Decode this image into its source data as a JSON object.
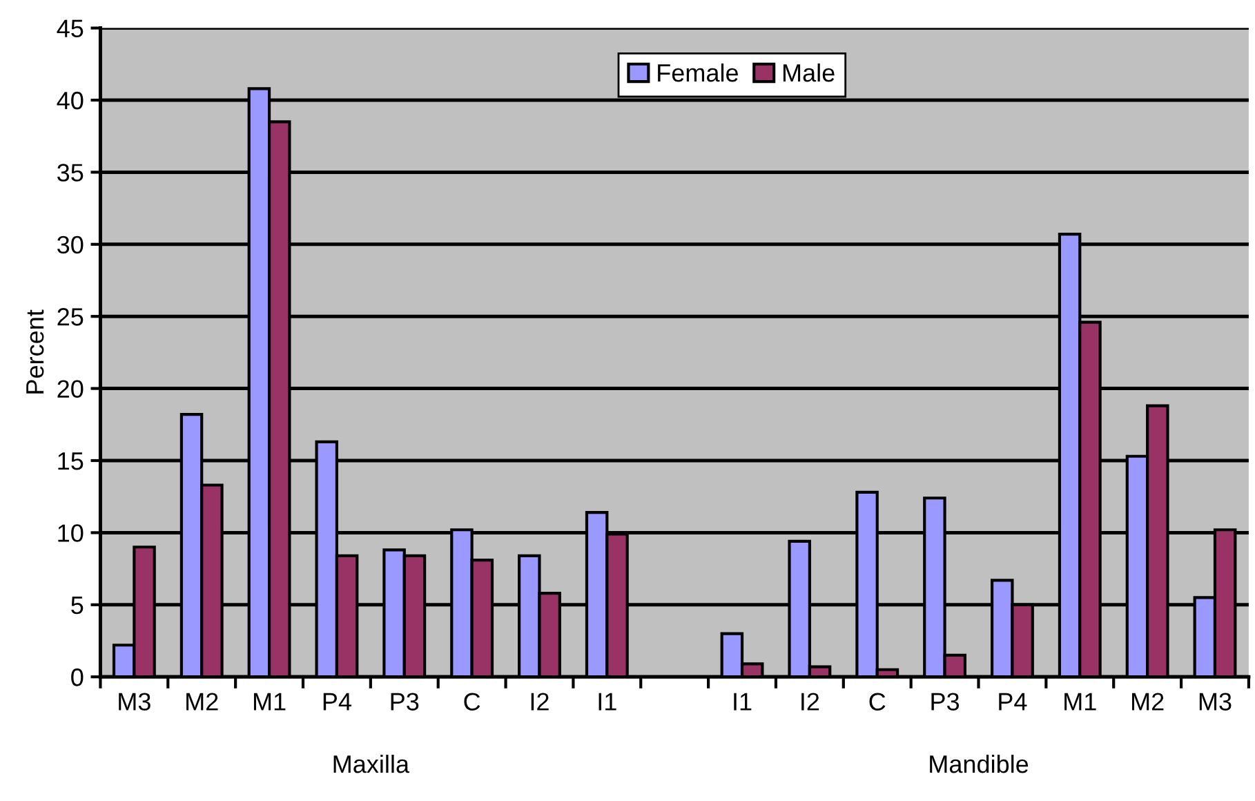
{
  "chart_data": {
    "type": "bar",
    "ylabel": "Percent",
    "categories": [
      "M3",
      "M2",
      "M1",
      "P4",
      "P3",
      "C",
      "I2",
      "I1",
      null,
      "I1",
      "I2",
      "C",
      "P3",
      "P4",
      "M1",
      "M2",
      "M3"
    ],
    "series": [
      {
        "name": "Female",
        "color": "#9999ff",
        "values": [
          2.2,
          18.2,
          40.8,
          16.3,
          8.8,
          10.2,
          8.4,
          11.4,
          null,
          3.0,
          9.4,
          12.8,
          12.4,
          6.7,
          30.7,
          15.3,
          5.5
        ]
      },
      {
        "name": "Male",
        "color": "#993366",
        "values": [
          9.0,
          13.3,
          38.5,
          8.4,
          8.4,
          8.1,
          5.8,
          9.9,
          null,
          0.9,
          0.7,
          0.5,
          1.5,
          5.0,
          24.6,
          18.8,
          10.2
        ]
      }
    ],
    "ylim": [
      0,
      45
    ],
    "yticks": [
      0,
      5,
      10,
      15,
      20,
      25,
      30,
      35,
      40,
      45
    ],
    "grid": "y",
    "legend": "top",
    "annotations": [
      "Maxilla",
      "Mandible"
    ]
  }
}
